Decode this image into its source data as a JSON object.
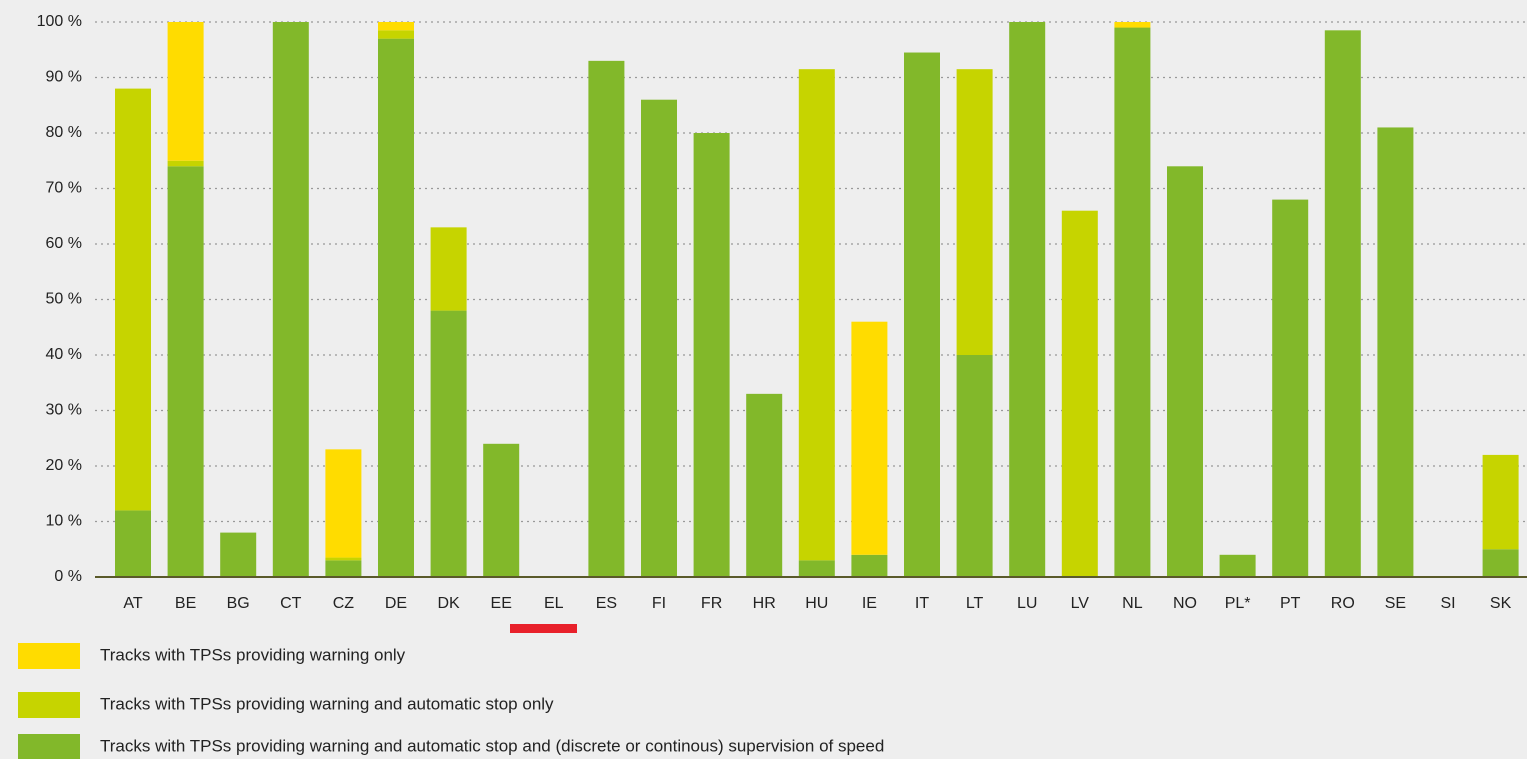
{
  "chart_data": {
    "type": "stacked_bar",
    "categories": [
      "AT",
      "BE",
      "BG",
      "CT",
      "CZ",
      "DE",
      "DK",
      "EE",
      "EL",
      "ES",
      "FI",
      "FR",
      "HR",
      "HU",
      "IE",
      "IT",
      "LT",
      "LU",
      "LV",
      "NL",
      "NO",
      "PL*",
      "PT",
      "RO",
      "SE",
      "SI",
      "SK"
    ],
    "series": [
      {
        "name": "Tracks with TPSs providing warning and automatic stop and (discrete or continous) supervision of speed",
        "color": "#82b82a",
        "values": [
          12,
          74,
          8,
          100,
          3,
          97,
          48,
          24,
          0,
          93,
          86,
          80,
          33,
          3,
          4,
          94.5,
          40,
          100,
          0,
          99,
          74,
          4,
          68,
          98.5,
          81,
          0,
          5
        ]
      },
      {
        "name": "Tracks with TPSs providing warning and automatic stop only",
        "color": "#c6d400",
        "values": [
          76,
          1,
          0,
          0,
          0.5,
          1.5,
          15,
          0,
          0,
          0,
          0,
          0,
          0,
          88.5,
          0,
          0,
          51.5,
          0,
          66,
          0,
          0,
          0,
          0,
          0,
          0,
          0,
          17
        ]
      },
      {
        "name": "Tracks with TPSs providing warning only",
        "color": "#ffdc00",
        "values": [
          0,
          25,
          0,
          0,
          19.5,
          1.5,
          0,
          0,
          0,
          0,
          0,
          0,
          0,
          0,
          42,
          0,
          0,
          0,
          0,
          1,
          0,
          0,
          0,
          0,
          0,
          0,
          0
        ]
      }
    ],
    "ylim": [
      0,
      100
    ],
    "yticks": [
      {
        "value": 0,
        "label": "0 %"
      },
      {
        "value": 10,
        "label": "10 %"
      },
      {
        "value": 20,
        "label": "20 %"
      },
      {
        "value": 30,
        "label": "30 %"
      },
      {
        "value": 40,
        "label": "40 %"
      },
      {
        "value": 50,
        "label": "50 %"
      },
      {
        "value": 60,
        "label": "60 %"
      },
      {
        "value": 70,
        "label": "70 %"
      },
      {
        "value": 80,
        "label": "80 %"
      },
      {
        "value": 90,
        "label": "90 %"
      },
      {
        "value": 100,
        "label": "100 %"
      }
    ],
    "grid": true
  }
}
